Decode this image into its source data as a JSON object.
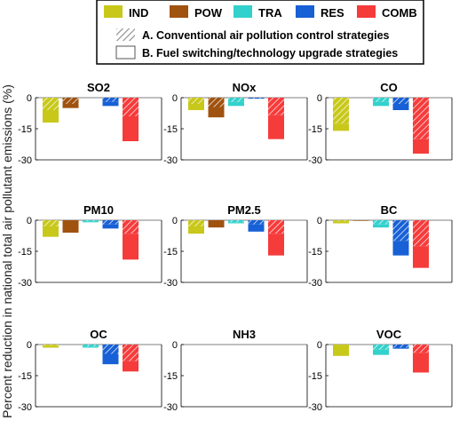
{
  "figure": {
    "ylabel": "Percent reduction in national total air pollutant emissions (%)"
  },
  "legend": {
    "sectors": [
      {
        "key": "IND",
        "label": "IND",
        "color": "#c8c81a"
      },
      {
        "key": "POW",
        "label": "POW",
        "color": "#a0520f"
      },
      {
        "key": "TRA",
        "label": "TRA",
        "color": "#33d1cc"
      },
      {
        "key": "RES",
        "label": "RES",
        "color": "#1760d6"
      },
      {
        "key": "COMB",
        "label": "COMB",
        "color": "#f63b3b"
      }
    ],
    "strategies": [
      {
        "key": "A",
        "label": "A. Conventional air pollution control strategies",
        "pattern": "hatched"
      },
      {
        "key": "B",
        "label": "B. Fuel switching/technology upgrade strategies",
        "pattern": "solid"
      }
    ]
  },
  "chart_data": {
    "type": "bar",
    "stacked": true,
    "categories": [
      "IND",
      "POW",
      "TRA",
      "RES",
      "COMB"
    ],
    "ylim": [
      -30,
      0
    ],
    "yticks": [
      0,
      -15,
      -30
    ],
    "grid": false,
    "legend_position": "top",
    "panels": [
      {
        "title": "SO2",
        "A": [
          -6,
          -3,
          0,
          -2,
          -9
        ],
        "B": [
          -6,
          -2,
          0,
          -2,
          -12
        ]
      },
      {
        "title": "NOx",
        "A": [
          -3,
          -4.5,
          -2,
          -0.5,
          -8.5
        ],
        "B": [
          -3,
          -5,
          -2,
          0,
          -11.5
        ]
      },
      {
        "title": "CO",
        "A": [
          -12.5,
          0,
          -2,
          -3,
          -20
        ],
        "B": [
          -3.5,
          0,
          -2,
          -3,
          -7
        ]
      },
      {
        "title": "PM10",
        "A": [
          -3,
          0,
          -0.5,
          -2,
          -6.5
        ],
        "B": [
          -5,
          -6,
          -0.5,
          -2,
          -12.5
        ]
      },
      {
        "title": "PM2.5",
        "A": [
          -3,
          0,
          -1,
          -2,
          -6.5
        ],
        "B": [
          -3.5,
          -3.5,
          -0.5,
          -3.5,
          -10.5
        ]
      },
      {
        "title": "BC",
        "A": [
          -0.5,
          0,
          -2,
          -10,
          -12.5
        ],
        "B": [
          -1,
          -0.3,
          -1.5,
          -7,
          -10.5
        ]
      },
      {
        "title": "OC",
        "A": [
          -0.5,
          0,
          -1,
          -4.5,
          -8
        ],
        "B": [
          -1,
          0,
          -0.5,
          -5,
          -5
        ]
      },
      {
        "title": "NH3",
        "A": [
          0,
          0,
          0,
          0,
          0
        ],
        "B": [
          0,
          0,
          0,
          0,
          0
        ]
      },
      {
        "title": "VOC",
        "A": [
          0,
          0,
          -2.5,
          -1.5,
          -4
        ],
        "B": [
          -5.5,
          0,
          -2.5,
          -0.5,
          -9.5
        ]
      }
    ]
  }
}
